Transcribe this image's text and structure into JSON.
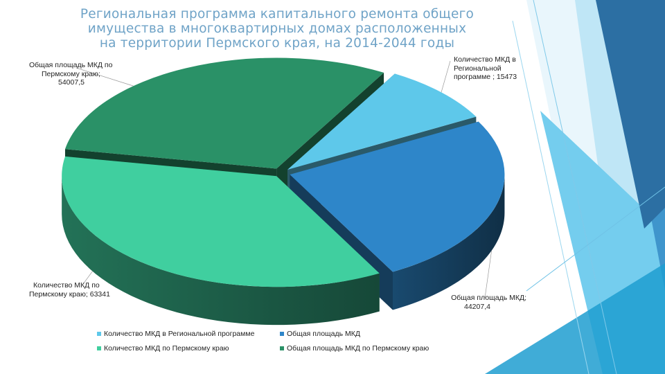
{
  "slide": {
    "title_lines": [
      "Региональная программа капитального ремонта общего",
      "имущества  в многоквартирных домах расположенных",
      "на территории Пермского края, на 2014-2044 годы"
    ]
  },
  "colors": {
    "title": "#6fa3c7",
    "light_blue": "#5ec8ea",
    "mid_blue": "#2e86c9",
    "mint_green": "#40cf9f",
    "dark_green": "#2a9167",
    "deco_blue_dark": "#2c6fa3",
    "deco_blue_light": "#8fd5f2"
  },
  "chart_data": {
    "type": "pie",
    "style": "3d-exploded",
    "legend_position": "bottom",
    "series": [
      {
        "name": "Количество МКД в Региональной программе",
        "value": 15473,
        "label_lines": [
          "Количество МКД в",
          "Региональной",
          "программе ; 15473"
        ],
        "color": "#5ec8ea"
      },
      {
        "name": "Общая площадь МКД",
        "value": 44207.4,
        "label_lines": [
          "Общая площадь МКД;",
          "44207,4"
        ],
        "color": "#2e86c9"
      },
      {
        "name": "Количество  МКД по Пермскому краю",
        "value": 63341,
        "label_lines": [
          "Количество  МКД по",
          "Пермскому краю; 63341"
        ],
        "color": "#40cf9f"
      },
      {
        "name": "Общая площадь МКД по Пермскому краю",
        "value": 54007.5,
        "label_lines": [
          "Общая площадь МКД по",
          "Пермскому краю;",
          "54007,5"
        ],
        "color": "#2a9167"
      }
    ]
  }
}
